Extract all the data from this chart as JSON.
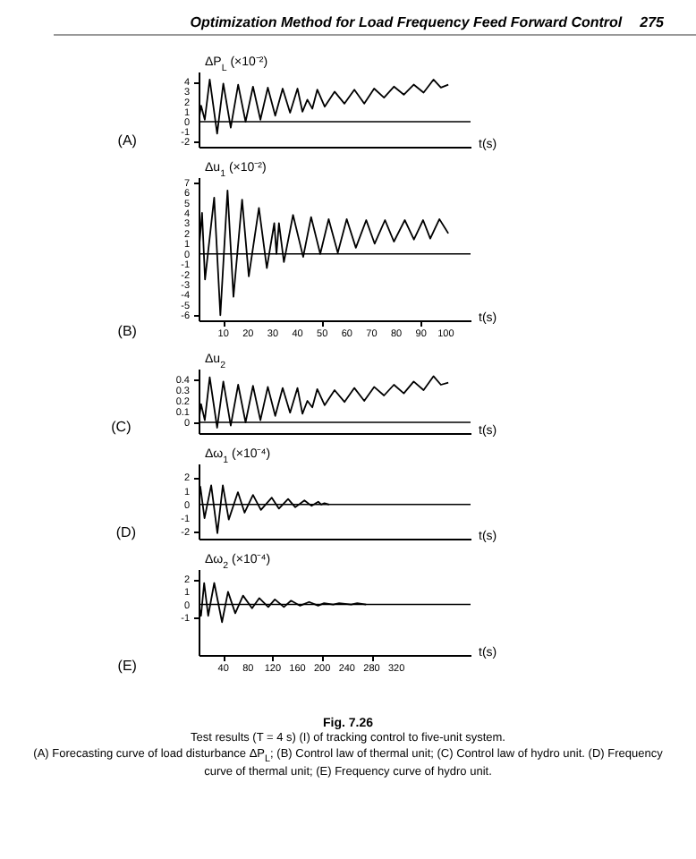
{
  "chart_data": [
    {
      "type": "line",
      "title": "(A)",
      "annotations": [
        "Optimization Method for Load Frequency Feed Forward Control",
        "275"
      ],
      "xlabel": "t(s)",
      "ylabel": "ΔP$_{L}$ (×10⁻²)",
      "xlim": [
        0,
        110
      ],
      "ylim": [
        -2.5,
        5
      ],
      "yticks": [
        -2,
        -1,
        0,
        1,
        2,
        3,
        4
      ],
      "tick_labels": "y",
      "ref_lines": [
        {
          "axis": "y",
          "value": 0
        }
      ],
      "x": [
        0,
        1,
        2.5,
        4.5,
        7.5,
        10,
        13,
        16,
        19,
        22,
        25,
        28,
        31,
        34,
        37,
        40,
        42,
        44,
        46,
        48,
        51,
        55,
        59,
        63,
        67,
        71,
        75,
        79,
        83,
        87,
        91,
        95,
        98,
        101
      ],
      "series": [
        {
          "color": "#000000",
          "values": [
            0,
            1.6,
            0.2,
            4.2,
            -1.2,
            3.8,
            -0.6,
            3.7,
            0,
            3.5,
            0.2,
            3.4,
            0.6,
            3.3,
            0.9,
            3.3,
            1,
            2.2,
            1.3,
            3.2,
            1.5,
            3,
            1.8,
            3.2,
            1.8,
            3.3,
            2.4,
            3.5,
            2.7,
            3.7,
            2.9,
            4.2,
            3.4,
            3.7
          ]
        }
      ]
    },
    {
      "type": "line",
      "title": "(B)",
      "xlabel": "t(s)",
      "ylabel": "Δu$_{1}$ (×10⁻²)",
      "xlim": [
        0,
        110
      ],
      "xticks": [
        10,
        20,
        30,
        40,
        50,
        60,
        70,
        80,
        90,
        100
      ],
      "ylim": [
        -6.5,
        7.5
      ],
      "yticks": [
        -6,
        -5,
        -4,
        -3,
        -2,
        -1,
        0,
        1,
        2,
        3,
        4,
        5,
        6,
        7
      ],
      "ref_lines": [
        {
          "axis": "y",
          "value": 0
        }
      ],
      "x": [
        0,
        1.4,
        2.6,
        6.3,
        8.8,
        11.7,
        14.1,
        17.6,
        20.3,
        24.4,
        27.6,
        30.6,
        31.5,
        32.5,
        34.5,
        38.2,
        42.3,
        45.5,
        49.2,
        52.6,
        56.3,
        59.9,
        63.6,
        67.8,
        71.2,
        75.4,
        79,
        83.4,
        87.1,
        90.8,
        93.7,
        97.4,
        101
      ],
      "series": [
        {
          "color": "#000000",
          "values": [
            0,
            4,
            -2.5,
            5.5,
            -6,
            6.2,
            -4.2,
            5.3,
            -2.2,
            4.5,
            -1.4,
            3,
            0,
            3,
            -0.8,
            3.8,
            -0.3,
            3.6,
            0,
            3.4,
            0.1,
            3.4,
            0.6,
            3.3,
            1,
            3.3,
            1.2,
            3.3,
            1.4,
            3.3,
            1.5,
            3.4,
            2
          ]
        }
      ]
    },
    {
      "type": "line",
      "title": "(C)",
      "xlabel": "t(s)",
      "ylabel": "Δu$_{2}$",
      "xlim": [
        0,
        110
      ],
      "ylim": [
        -0.1,
        0.5
      ],
      "yticks": [
        0,
        0.1,
        0.2,
        0.3,
        0.4
      ],
      "tick_labels": "y",
      "ref_lines": [
        {
          "axis": "y",
          "value": 0
        }
      ],
      "x": [
        0,
        1,
        2.5,
        4.5,
        7.5,
        10,
        13,
        16,
        19,
        22,
        25,
        28,
        31,
        34,
        37,
        40,
        42,
        44,
        46,
        48,
        51,
        55,
        59,
        63,
        67,
        71,
        75,
        79,
        83,
        87,
        91,
        95,
        98,
        101
      ],
      "series": [
        {
          "color": "#000000",
          "values": [
            0,
            0.17,
            0.02,
            0.42,
            -0.05,
            0.38,
            -0.03,
            0.35,
            0,
            0.34,
            0.02,
            0.33,
            0.06,
            0.32,
            0.09,
            0.32,
            0.08,
            0.2,
            0.14,
            0.31,
            0.16,
            0.3,
            0.19,
            0.32,
            0.2,
            0.33,
            0.25,
            0.35,
            0.27,
            0.38,
            0.3,
            0.43,
            0.35,
            0.37
          ]
        }
      ]
    },
    {
      "type": "line",
      "title": "(D)",
      "xlabel": "t(s)",
      "ylabel": "Δω$_{1}$ (×10⁻⁴)",
      "xlim": [
        0,
        110
      ],
      "ylim": [
        -2.5,
        3
      ],
      "yticks": [
        -2,
        -1,
        0,
        1,
        2
      ],
      "tick_labels": "y",
      "ref_lines": [
        {
          "axis": "y",
          "value": 0
        }
      ],
      "x": [
        0,
        0.7,
        2.4,
        5.1,
        7.6,
        9.8,
        12.2,
        15.9,
        18.6,
        22,
        25.2,
        29.6,
        32.5,
        36.2,
        39.1,
        42.8,
        45.7,
        48.4,
        49.6,
        50.9,
        52.8
      ],
      "series": [
        {
          "color": "#000000",
          "values": [
            0,
            1.3,
            -1,
            1.4,
            -2.1,
            1.4,
            -1.1,
            0.9,
            -0.6,
            0.7,
            -0.4,
            0.5,
            -0.3,
            0.4,
            -0.2,
            0.3,
            -0.1,
            0.2,
            0,
            0.1,
            0
          ]
        }
      ]
    },
    {
      "type": "line",
      "title": "(E)",
      "xlabel": "t(s)",
      "ylabel": "Δω$_{2}$ (×10⁻⁴)",
      "xlim": [
        0,
        440
      ],
      "xticks": [
        40,
        80,
        120,
        160,
        200,
        240,
        280,
        320
      ],
      "ylim": [
        -4,
        2.8
      ],
      "yticks": [
        -1,
        0,
        1,
        2
      ],
      "ref_lines": [
        {
          "axis": "y",
          "value": 0
        }
      ],
      "annotations": [
        "Fig. 7.26",
        "Test results (T = 4 s) (I) of tracking control to five-unit system.",
        "(A) Forecasting curve of load disturbance ΔP$_{L}$; (B) Control law of thermal unit; (C) Control law of hydro unit. (D) Frequency curve of thermal unit; (E) Frequency curve of hydro unit."
      ],
      "x": [
        0,
        3.9,
        9,
        15.5,
        25.3,
        37.9,
        47.6,
        59.3,
        71.9,
        86.5,
        98.1,
        112.7,
        123.4,
        138,
        149.6,
        164.2,
        178.8,
        193.4,
        203,
        217.7,
        227.4,
        246.8,
        256.6,
        271
      ],
      "series": [
        {
          "color": "#000000",
          "values": [
            0,
            -0.9,
            1.7,
            -0.9,
            1.7,
            -1.4,
            1,
            -0.7,
            0.7,
            -0.3,
            0.5,
            -0.2,
            0.4,
            -0.2,
            0.3,
            -0.1,
            0.2,
            -0.1,
            0.1,
            0,
            0.1,
            0,
            0.1,
            0
          ]
        }
      ]
    }
  ]
}
